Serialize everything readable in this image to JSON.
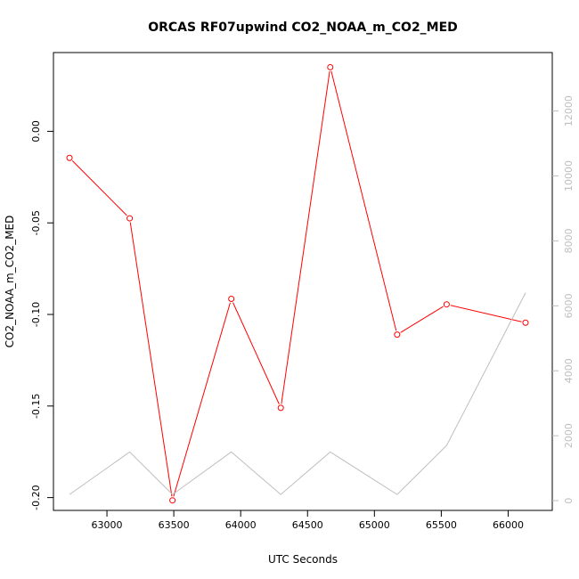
{
  "chart_data": {
    "type": "line",
    "title": "ORCAS RF07upwind CO2_NOAA_m_CO2_MED",
    "xlabel": "UTC Seconds",
    "ylabel": "CO2_NOAA_m_CO2_MED",
    "xlim": [
      66520,
      66330
    ],
    "ylim": [
      -0.207,
      0.043
    ],
    "y2lim": [
      -300,
      13800
    ],
    "xticks": [
      63000,
      63500,
      64000,
      64500,
      65000,
      65500,
      66000
    ],
    "yticks": [
      -0.2,
      -0.15,
      -0.1,
      -0.05,
      0.0
    ],
    "ytick_labels": [
      "-0.20",
      "-0.15",
      "-0.10",
      "-0.05",
      "0.00"
    ],
    "y2ticks": [
      0,
      2000,
      4000,
      6000,
      8000,
      10000,
      12000
    ],
    "series": [
      {
        "axis": "left",
        "color": "#ff0000",
        "marker": "open-circle",
        "x": [
          62720,
          63170,
          63490,
          63930,
          64300,
          64670,
          65170,
          65540,
          66130
        ],
        "y": [
          -0.0145,
          -0.0475,
          -0.2015,
          -0.0915,
          -0.151,
          0.035,
          -0.111,
          -0.0945,
          -0.1045
        ]
      },
      {
        "axis": "right",
        "color": "#bebebe",
        "marker": "none",
        "x": [
          62720,
          63170,
          63490,
          63930,
          64300,
          64670,
          65170,
          65540,
          66130
        ],
        "y": [
          190,
          1500,
          190,
          1500,
          190,
          1500,
          190,
          1700,
          6400
        ]
      }
    ]
  }
}
